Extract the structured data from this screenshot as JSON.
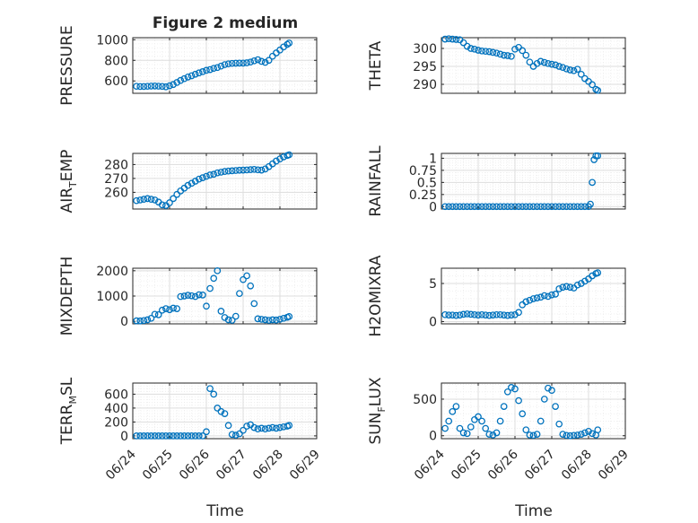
{
  "figure": {
    "title": "Figure 2 medium",
    "xlabel_left": "Time",
    "xlabel_right": "Time"
  },
  "colors": {
    "marker": "#0072bd",
    "axis": "#262626",
    "grid_major": "#dddddd",
    "grid_minor": "#ececec"
  },
  "chart_data": [
    {
      "type": "scatter",
      "panel": "left-1",
      "ylabel": "PRESSURE",
      "ylim": [
        480,
        1020
      ],
      "yticks": [
        600,
        800,
        1000
      ],
      "xlim": [
        0,
        5
      ],
      "xticks": [],
      "x": [
        0.1,
        0.2,
        0.3,
        0.4,
        0.5,
        0.6,
        0.7,
        0.8,
        0.9,
        1.0,
        1.1,
        1.2,
        1.3,
        1.4,
        1.5,
        1.6,
        1.7,
        1.8,
        1.9,
        2.0,
        2.1,
        2.2,
        2.3,
        2.4,
        2.5,
        2.6,
        2.7,
        2.8,
        2.9,
        3.0,
        3.1,
        3.2,
        3.3,
        3.4,
        3.5,
        3.6,
        3.7,
        3.8,
        3.9,
        4.0,
        4.1,
        4.2,
        4.25
      ],
      "y": [
        548,
        546,
        546,
        548,
        550,
        551,
        549,
        547,
        543,
        553,
        565,
        585,
        605,
        622,
        638,
        650,
        665,
        678,
        690,
        703,
        710,
        722,
        730,
        744,
        758,
        766,
        770,
        772,
        773,
        773,
        776,
        783,
        795,
        806,
        790,
        780,
        800,
        840,
        872,
        900,
        930,
        955,
        968
      ]
    },
    {
      "type": "scatter",
      "panel": "right-1",
      "ylabel": "THETA",
      "ylim": [
        287.5,
        303
      ],
      "yticks": [
        290,
        295,
        300
      ],
      "xlim": [
        0,
        5
      ],
      "xticks": [],
      "x": [
        0.1,
        0.2,
        0.3,
        0.4,
        0.5,
        0.6,
        0.7,
        0.8,
        0.9,
        1.0,
        1.1,
        1.2,
        1.3,
        1.4,
        1.5,
        1.6,
        1.7,
        1.8,
        1.9,
        2.0,
        2.1,
        2.2,
        2.3,
        2.4,
        2.5,
        2.6,
        2.7,
        2.8,
        2.9,
        3.0,
        3.1,
        3.2,
        3.3,
        3.4,
        3.5,
        3.6,
        3.7,
        3.8,
        3.9,
        4.0,
        4.1,
        4.2,
        4.25
      ],
      "y": [
        302.6,
        302.7,
        302.6,
        302.5,
        302.4,
        301.6,
        300.6,
        300.0,
        299.8,
        299.5,
        299.3,
        299.2,
        299.1,
        298.9,
        298.7,
        298.4,
        298.1,
        298.0,
        297.8,
        299.8,
        300.3,
        299.4,
        298.1,
        296.2,
        295.0,
        295.8,
        296.4,
        296.1,
        295.8,
        295.6,
        295.4,
        295.0,
        294.7,
        294.3,
        294.0,
        293.8,
        294.2,
        292.8,
        291.6,
        290.8,
        289.9,
        288.6,
        288.3
      ]
    },
    {
      "type": "scatter",
      "panel": "left-2",
      "ylabel": "AIR_TEMP",
      "ylim": [
        248,
        288
      ],
      "yticks": [
        260,
        270,
        280
      ],
      "xlim": [
        0,
        5
      ],
      "xticks": [],
      "x": [
        0.1,
        0.2,
        0.3,
        0.4,
        0.5,
        0.6,
        0.7,
        0.8,
        0.9,
        1.0,
        1.1,
        1.2,
        1.3,
        1.4,
        1.5,
        1.6,
        1.7,
        1.8,
        1.9,
        2.0,
        2.1,
        2.2,
        2.3,
        2.4,
        2.5,
        2.6,
        2.7,
        2.8,
        2.9,
        3.0,
        3.1,
        3.2,
        3.3,
        3.4,
        3.5,
        3.6,
        3.7,
        3.8,
        3.9,
        4.0,
        4.1,
        4.2,
        4.25
      ],
      "y": [
        254.0,
        254.5,
        255.0,
        255.5,
        255.0,
        254.5,
        253.0,
        251.0,
        250.5,
        252.5,
        255.5,
        258.5,
        261.0,
        263.0,
        265.0,
        266.5,
        268.0,
        269.5,
        270.5,
        271.5,
        272.5,
        273.0,
        274.0,
        274.5,
        275.0,
        275.3,
        275.5,
        275.7,
        275.9,
        276.0,
        276.1,
        276.3,
        276.5,
        276.2,
        276.0,
        276.8,
        278.5,
        280.5,
        282.5,
        284.0,
        285.5,
        286.5,
        287.0
      ]
    },
    {
      "type": "scatter",
      "panel": "right-2",
      "ylabel": "RAINFALL",
      "ylim": [
        -0.05,
        1.1
      ],
      "yticks": [
        0,
        0.25,
        0.5,
        0.75,
        1
      ],
      "ytick_labels": [
        "0",
        "",
        "0.5",
        "",
        "1"
      ],
      "ytick_labels_full": [
        "0",
        "0.25",
        "0.5",
        "0.75",
        "1"
      ],
      "xlim": [
        0,
        5
      ],
      "xticks": [],
      "x": [
        0.1,
        0.2,
        0.3,
        0.4,
        0.5,
        0.6,
        0.7,
        0.8,
        0.9,
        1.0,
        1.1,
        1.2,
        1.3,
        1.4,
        1.5,
        1.6,
        1.7,
        1.8,
        1.9,
        2.0,
        2.1,
        2.2,
        2.3,
        2.4,
        2.5,
        2.6,
        2.7,
        2.8,
        2.9,
        3.0,
        3.1,
        3.2,
        3.3,
        3.4,
        3.5,
        3.6,
        3.7,
        3.8,
        3.9,
        4.0,
        4.05,
        4.1,
        4.15,
        4.2,
        4.25
      ],
      "y": [
        0,
        0,
        0,
        0,
        0,
        0,
        0,
        0,
        0,
        0,
        0,
        0,
        0,
        0,
        0,
        0,
        0,
        0,
        0,
        0,
        0,
        0,
        0,
        0,
        0,
        0,
        0,
        0,
        0,
        0,
        0,
        0,
        0,
        0,
        0,
        0,
        0,
        0,
        0,
        0,
        0.05,
        0.5,
        0.97,
        1.05,
        1.05
      ]
    },
    {
      "type": "scatter",
      "panel": "left-3",
      "ylabel": "MIXDEPTH",
      "ylim": [
        -100,
        2100
      ],
      "yticks": [
        0,
        1000,
        2000
      ],
      "xlim": [
        0,
        5
      ],
      "xticks": [],
      "x": [
        0.1,
        0.2,
        0.3,
        0.4,
        0.5,
        0.6,
        0.7,
        0.8,
        0.9,
        1.0,
        1.1,
        1.2,
        1.3,
        1.4,
        1.5,
        1.6,
        1.7,
        1.8,
        1.9,
        2.0,
        2.1,
        2.2,
        2.3,
        2.4,
        2.5,
        2.6,
        2.7,
        2.8,
        2.9,
        3.0,
        3.1,
        3.2,
        3.3,
        3.4,
        3.5,
        3.6,
        3.7,
        3.8,
        3.9,
        4.0,
        4.1,
        4.2,
        4.25
      ],
      "y": [
        20,
        15,
        30,
        60,
        120,
        280,
        260,
        440,
        500,
        460,
        520,
        500,
        980,
        1000,
        1030,
        1010,
        980,
        1050,
        1040,
        600,
        1300,
        1700,
        2000,
        400,
        150,
        60,
        40,
        200,
        1100,
        1650,
        1800,
        1400,
        700,
        100,
        80,
        60,
        40,
        60,
        50,
        80,
        120,
        160,
        190
      ]
    },
    {
      "type": "scatter",
      "panel": "right-3",
      "ylabel": "H2OMIXRA",
      "ylim": [
        -0.3,
        7
      ],
      "yticks": [
        0,
        5
      ],
      "xlim": [
        0,
        5
      ],
      "xticks": [],
      "x": [
        0.1,
        0.2,
        0.3,
        0.4,
        0.5,
        0.6,
        0.7,
        0.8,
        0.9,
        1.0,
        1.1,
        1.2,
        1.3,
        1.4,
        1.5,
        1.6,
        1.7,
        1.8,
        1.9,
        2.0,
        2.1,
        2.2,
        2.3,
        2.4,
        2.5,
        2.6,
        2.7,
        2.8,
        2.9,
        3.0,
        3.1,
        3.2,
        3.3,
        3.4,
        3.5,
        3.6,
        3.7,
        3.8,
        3.9,
        4.0,
        4.1,
        4.2,
        4.25
      ],
      "y": [
        0.9,
        0.85,
        0.85,
        0.8,
        0.85,
        0.95,
        1.0,
        0.95,
        0.9,
        0.85,
        0.9,
        0.85,
        0.8,
        0.85,
        0.9,
        0.9,
        0.85,
        0.8,
        0.85,
        0.9,
        1.2,
        2.2,
        2.6,
        2.8,
        3.0,
        3.1,
        3.2,
        3.4,
        3.3,
        3.5,
        3.6,
        4.3,
        4.5,
        4.6,
        4.5,
        4.4,
        4.8,
        5.0,
        5.3,
        5.6,
        6.0,
        6.3,
        6.4
      ]
    },
    {
      "type": "scatter",
      "panel": "left-4",
      "ylabel": "TERR_MSL",
      "ylim": [
        -40,
        760
      ],
      "yticks": [
        0,
        200,
        400,
        600
      ],
      "xlim": [
        0,
        5
      ],
      "xticks": [
        0.0,
        1.0,
        2.0,
        3.0,
        4.0,
        5.0
      ],
      "xtick_labels": [
        "06/24",
        "06/25",
        "06/26",
        "06/27",
        "06/28",
        "06/29"
      ],
      "x": [
        0.1,
        0.2,
        0.3,
        0.4,
        0.5,
        0.6,
        0.7,
        0.8,
        0.9,
        1.0,
        1.1,
        1.2,
        1.3,
        1.4,
        1.5,
        1.6,
        1.7,
        1.8,
        1.9,
        2.0,
        2.1,
        2.2,
        2.3,
        2.4,
        2.5,
        2.6,
        2.7,
        2.8,
        2.9,
        3.0,
        3.1,
        3.2,
        3.3,
        3.4,
        3.5,
        3.6,
        3.7,
        3.8,
        3.9,
        4.0,
        4.1,
        4.2,
        4.25
      ],
      "y": [
        0,
        0,
        0,
        0,
        0,
        0,
        0,
        0,
        0,
        0,
        0,
        0,
        0,
        0,
        0,
        0,
        0,
        0,
        0,
        60,
        680,
        600,
        400,
        350,
        320,
        150,
        20,
        10,
        30,
        80,
        140,
        160,
        120,
        100,
        110,
        100,
        110,
        120,
        110,
        120,
        130,
        140,
        150
      ]
    },
    {
      "type": "scatter",
      "panel": "right-4",
      "ylabel": "SUN_FLUX",
      "ylim": [
        -40,
        720
      ],
      "yticks": [
        0,
        500
      ],
      "xlim": [
        0,
        5
      ],
      "xticks": [
        0.0,
        1.0,
        2.0,
        3.0,
        4.0,
        5.0
      ],
      "xtick_labels": [
        "06/24",
        "06/25",
        "06/26",
        "06/27",
        "06/28",
        "06/29"
      ],
      "x": [
        0.1,
        0.2,
        0.3,
        0.4,
        0.5,
        0.6,
        0.7,
        0.8,
        0.9,
        1.0,
        1.1,
        1.2,
        1.3,
        1.4,
        1.5,
        1.6,
        1.7,
        1.8,
        1.9,
        2.0,
        2.1,
        2.2,
        2.3,
        2.4,
        2.5,
        2.6,
        2.7,
        2.8,
        2.9,
        3.0,
        3.1,
        3.2,
        3.3,
        3.4,
        3.5,
        3.6,
        3.7,
        3.8,
        3.9,
        4.0,
        4.1,
        4.2,
        4.25
      ],
      "y": [
        100,
        200,
        330,
        400,
        100,
        40,
        30,
        120,
        220,
        260,
        200,
        100,
        20,
        10,
        40,
        200,
        400,
        600,
        660,
        640,
        480,
        300,
        80,
        10,
        5,
        20,
        200,
        500,
        650,
        620,
        400,
        160,
        20,
        5,
        0,
        5,
        10,
        20,
        40,
        60,
        30,
        10,
        80
      ]
    }
  ]
}
